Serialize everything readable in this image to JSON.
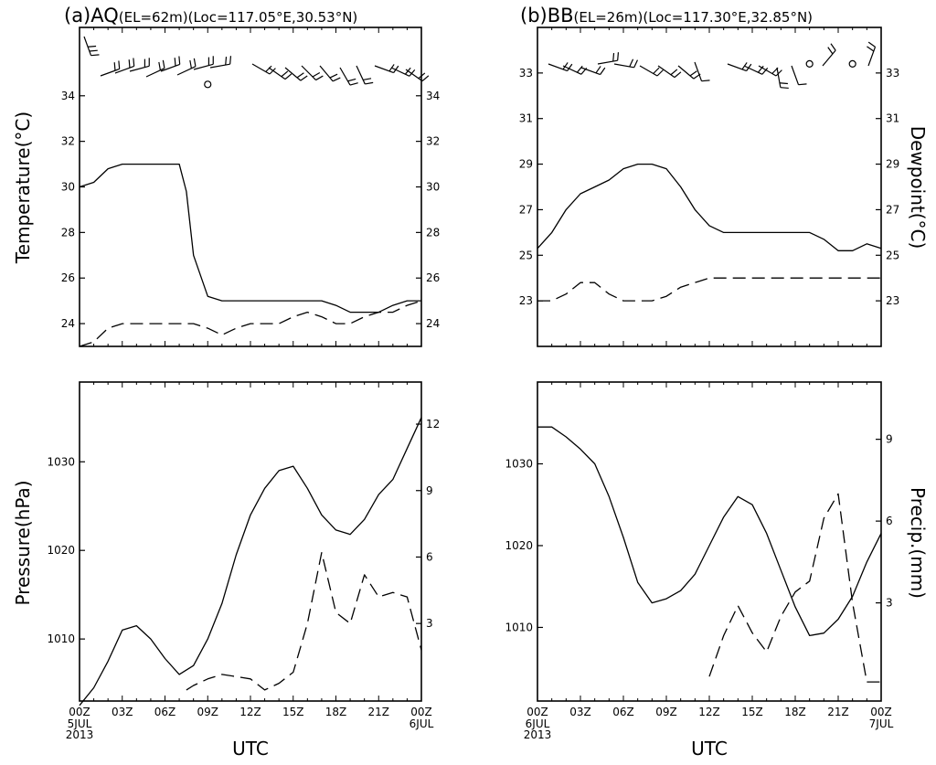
{
  "chart_data": [
    {
      "type": "line",
      "panel": "a-top",
      "title_prefix": "(a)",
      "title_station": "AQ",
      "title_meta": "(EL=62m)(Loc=117.05°E,30.53°N)",
      "ylabel_left": "Temperature(°C)",
      "ylabel_right": "",
      "ylim": [
        23,
        37
      ],
      "yticks": [
        24,
        26,
        28,
        30,
        32,
        34
      ],
      "xlim": [
        0,
        24
      ],
      "series": [
        {
          "style": "solid",
          "x": [
            0,
            1,
            2,
            3,
            4,
            5,
            6,
            7,
            7.5,
            8,
            9,
            10,
            11,
            12,
            13,
            14,
            15,
            16,
            17,
            18,
            19,
            20,
            21,
            22,
            23,
            24
          ],
          "values": [
            30,
            30.2,
            30.8,
            31,
            31,
            31,
            31,
            31,
            29.8,
            27,
            25.2,
            25,
            25,
            25,
            25,
            25,
            25,
            25,
            25,
            24.8,
            24.5,
            24.5,
            24.5,
            24.8,
            25,
            25
          ]
        },
        {
          "style": "dashed",
          "x": [
            0,
            1,
            2,
            3,
            4,
            5,
            6,
            7,
            8,
            9,
            10,
            11,
            12,
            13,
            14,
            15,
            16,
            17,
            18,
            19,
            20,
            21,
            22,
            23,
            24
          ],
          "values": [
            23,
            23.2,
            23.8,
            24,
            24,
            24,
            24,
            24,
            24,
            23.8,
            23.5,
            23.8,
            24,
            24,
            24,
            24.3,
            24.5,
            24.3,
            24,
            24,
            24.3,
            24.5,
            24.5,
            24.8,
            25
          ]
        }
      ],
      "station_marks": [
        {
          "x": 9,
          "y": 34.5,
          "kind": "calm"
        }
      ]
    },
    {
      "type": "line",
      "panel": "b-top",
      "title_prefix": "(b)",
      "title_station": "BB",
      "title_meta": "(EL=26m)(Loc=117.30°E,32.85°N)",
      "ylabel_left": "",
      "ylabel_right": "Dewpoint(°C)",
      "ylim": [
        21,
        35
      ],
      "yticks": [
        23,
        25,
        27,
        29,
        31,
        33
      ],
      "xlim": [
        0,
        24
      ],
      "series": [
        {
          "style": "solid",
          "x": [
            0,
            1,
            2,
            3,
            4,
            5,
            6,
            7,
            8,
            9,
            10,
            11,
            12,
            13,
            14,
            15,
            16,
            17,
            18,
            19,
            20,
            21,
            22,
            23,
            24
          ],
          "values": [
            25.3,
            26,
            27,
            27.7,
            28,
            28.3,
            28.8,
            29,
            29,
            28.8,
            28,
            27,
            26.3,
            26,
            26,
            26,
            26,
            26,
            26,
            26,
            25.7,
            25.2,
            25.2,
            25.5,
            25.3
          ]
        },
        {
          "style": "dashed",
          "x": [
            0,
            1,
            2,
            3,
            4,
            5,
            6,
            7,
            8,
            9,
            10,
            11,
            12,
            13,
            14,
            15,
            16,
            17,
            18,
            19,
            20,
            21,
            22,
            23,
            24
          ],
          "values": [
            23,
            23,
            23.3,
            23.8,
            23.8,
            23.3,
            23,
            23,
            23,
            23.2,
            23.6,
            23.8,
            24,
            24,
            24,
            24,
            24,
            24,
            24,
            24,
            24,
            24,
            24,
            24,
            24
          ]
        }
      ],
      "station_marks": [
        {
          "x": 19,
          "y": 33.4,
          "kind": "calm"
        },
        {
          "x": 22,
          "y": 33.4,
          "kind": "calm"
        }
      ]
    },
    {
      "type": "line",
      "panel": "a-bottom",
      "ylabel_left": "Pressure(hPa)",
      "ylabel_right": "",
      "ylim": [
        1003,
        1039
      ],
      "yticks": [
        1010,
        1020,
        1030
      ],
      "ylim_right": [
        -0.5,
        13.9
      ],
      "yticks_right": [
        3,
        6,
        9,
        12
      ],
      "xlim": [
        0,
        24
      ],
      "xticks": [
        "00Z",
        "03Z",
        "06Z",
        "09Z",
        "12Z",
        "15Z",
        "18Z",
        "21Z",
        "00Z"
      ],
      "date_start": [
        "5JUL",
        "2013"
      ],
      "date_end": [
        "6JUL"
      ],
      "xlabel": "UTC",
      "series": [
        {
          "style": "solid",
          "x": [
            0,
            1,
            2,
            3,
            4,
            5,
            6,
            7,
            8,
            9,
            10,
            11,
            12,
            13,
            14,
            15,
            16,
            17,
            18,
            19,
            20,
            21,
            22,
            23,
            24
          ],
          "values": [
            1002.5,
            1004.5,
            1007.5,
            1011,
            1011.5,
            1010,
            1007.8,
            1006,
            1007,
            1010,
            1014,
            1019.5,
            1024,
            1027,
            1029,
            1029.5,
            1027,
            1024,
            1022.3,
            1021.8,
            1023.5,
            1026.3,
            1028,
            1031.5,
            1035
          ]
        },
        {
          "style": "dashed",
          "x": [
            7.5,
            8,
            9,
            10,
            11,
            12,
            13,
            14,
            15,
            16,
            17,
            18,
            19,
            20,
            21,
            22,
            23,
            24
          ],
          "values": [
            0,
            0.2,
            0.5,
            0.7,
            0.6,
            0.5,
            0,
            0.3,
            0.8,
            3,
            6.2,
            3.5,
            3,
            5.2,
            4.2,
            4.4,
            4.2,
            1.8
          ]
        }
      ]
    },
    {
      "type": "line",
      "panel": "b-bottom",
      "ylabel_left": "",
      "ylabel_right": "Precip.(mm)",
      "ylim": [
        1001,
        1040
      ],
      "yticks": [
        1010,
        1020,
        1030
      ],
      "ylim_right": [
        -0.6,
        11.1
      ],
      "yticks_right": [
        3,
        6,
        9
      ],
      "xlim": [
        0,
        24
      ],
      "xticks": [
        "00Z",
        "03Z",
        "06Z",
        "09Z",
        "12Z",
        "15Z",
        "18Z",
        "21Z",
        "00Z"
      ],
      "date_start": [
        "6JUL",
        "2013"
      ],
      "date_end": [
        "7JUL"
      ],
      "xlabel": "UTC",
      "series": [
        {
          "style": "solid",
          "x": [
            0,
            1,
            2,
            3,
            4,
            5,
            6,
            7,
            8,
            9,
            10,
            11,
            12,
            13,
            14,
            15,
            16,
            17,
            18,
            19,
            20,
            21,
            22,
            23,
            24
          ],
          "values": [
            1034.5,
            1034.5,
            1033.3,
            1031.8,
            1030,
            1026,
            1021,
            1015.5,
            1013,
            1013.5,
            1014.5,
            1016.5,
            1020,
            1023.5,
            1026,
            1025,
            1021.5,
            1017,
            1012.5,
            1009,
            1009.3,
            1011,
            1013.8,
            1018,
            1021.5
          ]
        },
        {
          "style": "dashed",
          "x": [
            12,
            13,
            14,
            15,
            16,
            17,
            18,
            19,
            20,
            21,
            22,
            23,
            24
          ],
          "values": [
            0.3,
            1.8,
            2.9,
            1.9,
            1.2,
            2.5,
            3.4,
            3.8,
            6.1,
            7,
            3,
            0.1,
            0.1
          ]
        }
      ]
    }
  ]
}
